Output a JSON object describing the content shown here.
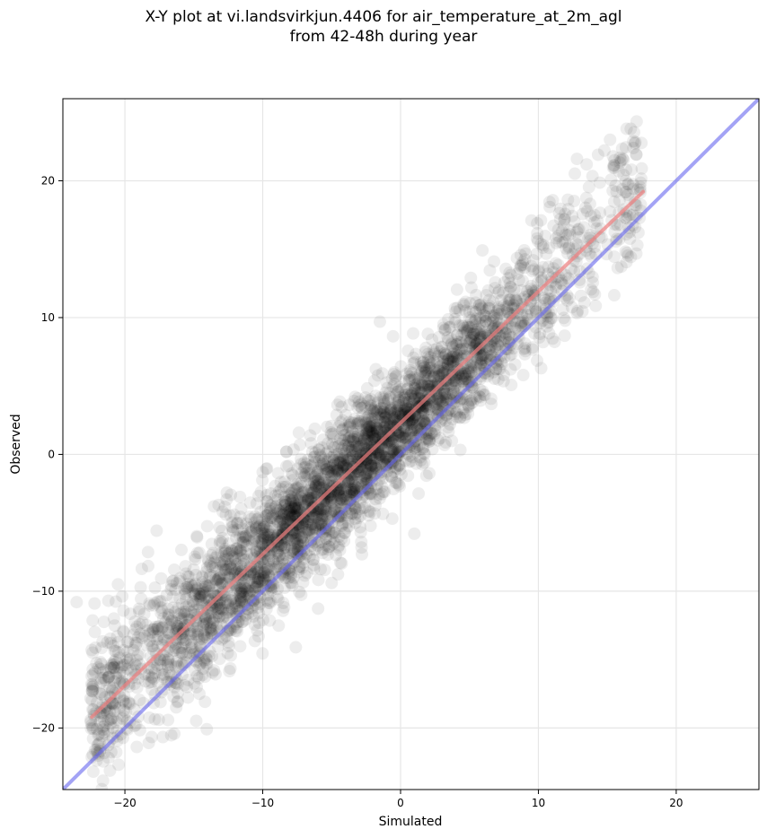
{
  "chart_data": {
    "type": "scatter",
    "title_line1": "X-Y plot at vi.landsvirkjun.4406 for air_temperature_at_2m_agl",
    "title_line2": "from 42-48h during year",
    "xlabel": "Simulated",
    "ylabel": "Observed",
    "xlim": [
      -24.5,
      26
    ],
    "ylim": [
      -24.5,
      26
    ],
    "xticks": [
      -20,
      -10,
      0,
      10,
      20
    ],
    "yticks": [
      -20,
      -10,
      0,
      10,
      20
    ],
    "xtick_labels": [
      "−20",
      "−10",
      "0",
      "10",
      "20"
    ],
    "ytick_labels": [
      "−20",
      "−10",
      "0",
      "10",
      "20"
    ],
    "grid": true,
    "point_color": "#000000",
    "fit_line": {
      "color": "#f08080",
      "x": [
        -22.4,
        17.6
      ],
      "y": [
        -19.2,
        19.2
      ]
    },
    "identity_line": {
      "color": "#6666ee",
      "x": [
        -24.5,
        26
      ],
      "y": [
        -24.5,
        26
      ]
    },
    "point_cloud": {
      "n": 3800,
      "x_range": [
        -22.5,
        17.5
      ],
      "slope": 0.96,
      "intercept": 2.3,
      "spread": 2.0
    },
    "outliers": [
      [
        -22.2,
        -10.9
      ],
      [
        -23.5,
        -10.8
      ],
      [
        -21.2,
        -10.7
      ],
      [
        16.4,
        23.8
      ],
      [
        16.7,
        23.8
      ],
      [
        15.2,
        23.0
      ],
      [
        16.9,
        22.4
      ],
      [
        17.5,
        20.9
      ],
      [
        13.5,
        21.2
      ],
      [
        -1.5,
        9.7
      ],
      [
        1.0,
        -5.8
      ],
      [
        -7.6,
        -14.1
      ],
      [
        -10.3,
        -13.3
      ],
      [
        -15.5,
        -17.0
      ],
      [
        -18.3,
        -15.6
      ],
      [
        -20.5,
        -9.5
      ],
      [
        -20.8,
        -12.0
      ],
      [
        10.2,
        6.3
      ],
      [
        8.9,
        5.8
      ],
      [
        -3.3,
        4.2
      ],
      [
        -10.0,
        -1.3
      ],
      [
        -12.6,
        -2.8
      ],
      [
        -13.2,
        -3.7
      ],
      [
        12.8,
        21.6
      ],
      [
        11.9,
        17.2
      ],
      [
        9.5,
        17.1
      ],
      [
        -5.0,
        -9.4
      ],
      [
        -2.8,
        -7.3
      ],
      [
        -0.6,
        -4.7
      ],
      [
        5.1,
        12.9
      ]
    ]
  }
}
